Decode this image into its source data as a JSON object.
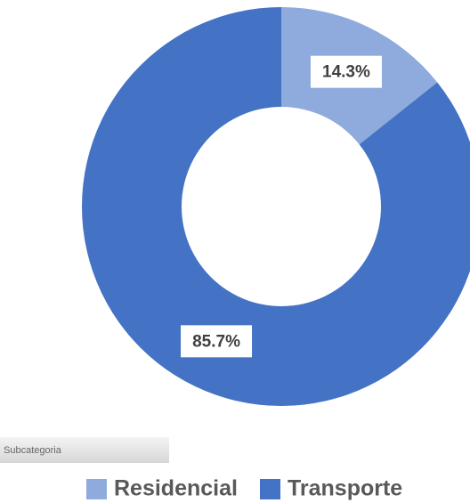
{
  "chart_data": {
    "type": "pie",
    "donut": true,
    "categories": [
      "Residencial",
      "Transporte"
    ],
    "values": [
      14.3,
      85.7
    ],
    "value_labels": [
      "14.3%",
      "85.7%"
    ],
    "colors": [
      "#8faadc",
      "#4472c4"
    ],
    "legend_title": "Subcategoria",
    "legend": "bottom"
  }
}
